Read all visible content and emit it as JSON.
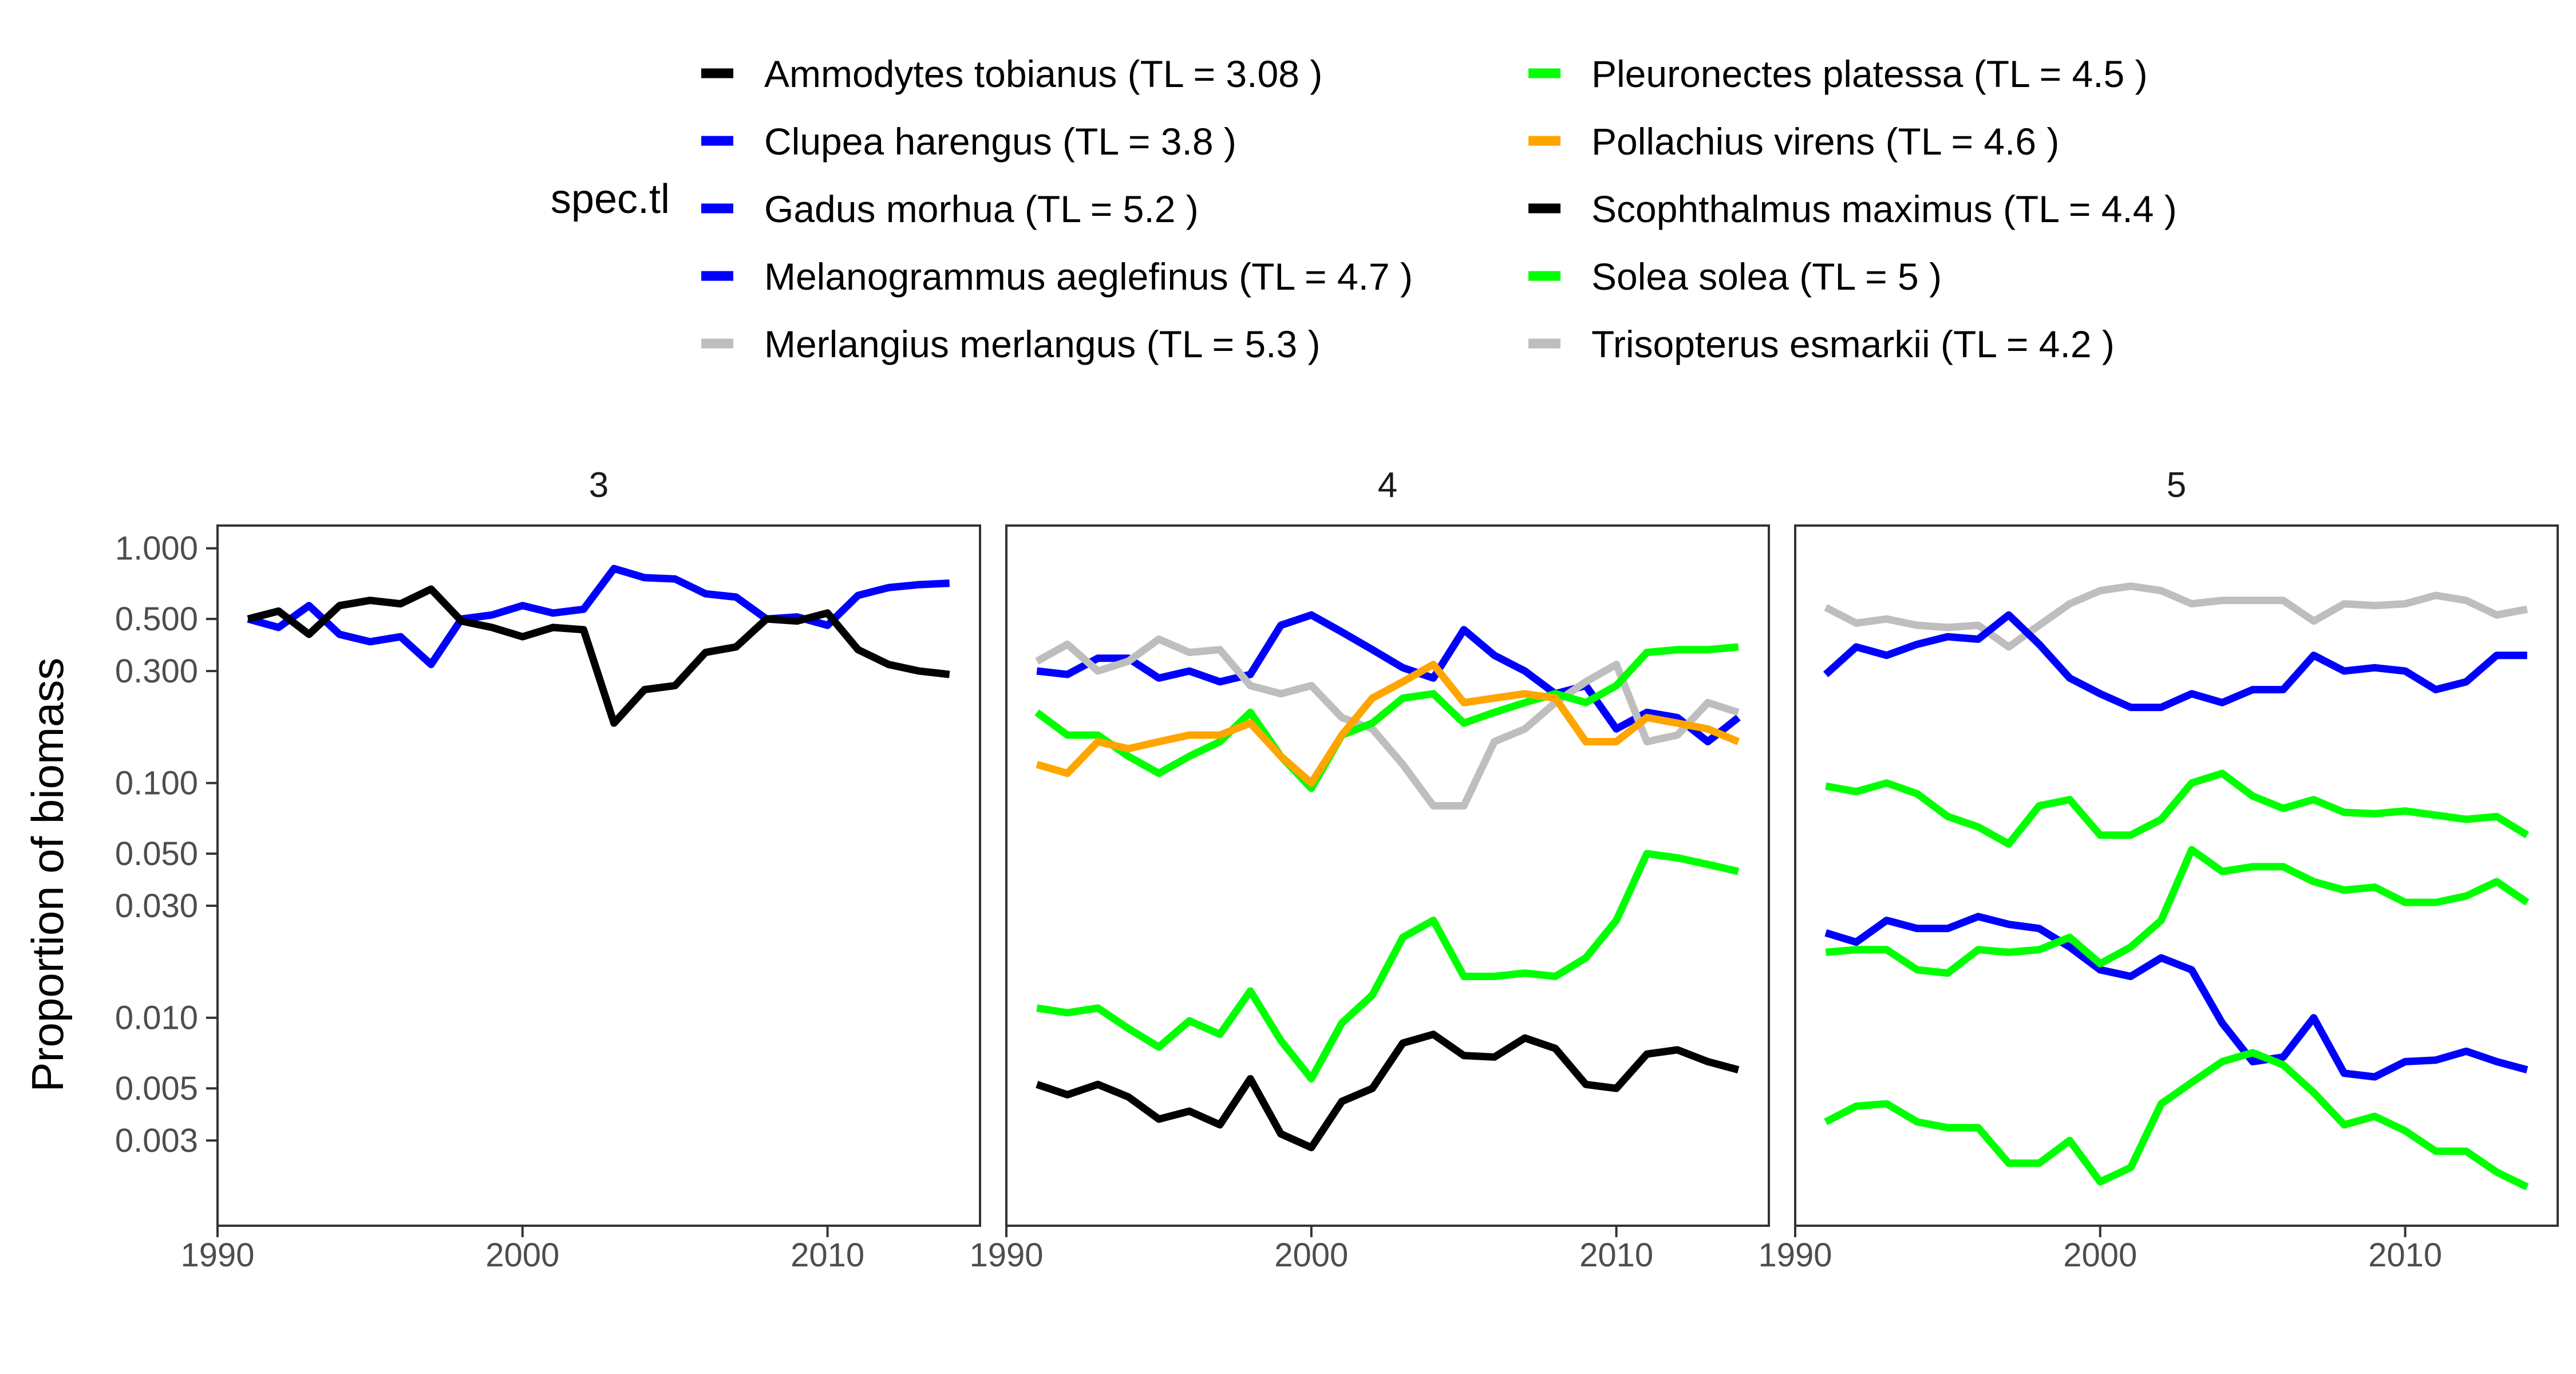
{
  "chart_data": {
    "type": "line",
    "y_scale": "log10",
    "ylabel": "Proportion of biomass",
    "xlabel": "",
    "xlim": [
      1990,
      2015
    ],
    "ylim": [
      0.0013,
      1.25
    ],
    "x_ticks": [
      1990,
      2000,
      2010
    ],
    "x_tick_labels": [
      "1990",
      "2000",
      "2010"
    ],
    "y_ticks": [
      1.0,
      0.5,
      0.3,
      0.1,
      0.05,
      0.03,
      0.01,
      0.005,
      0.003
    ],
    "y_tick_labels": [
      "1.000",
      "0.500",
      "0.300",
      "0.100",
      "0.050",
      "0.030",
      "0.010",
      "0.005",
      "0.003"
    ],
    "legend": {
      "title": "spec.tl",
      "placement": "top",
      "entries": [
        {
          "label": "Ammodytes tobianus (TL =  3.08 )",
          "color": "#000000"
        },
        {
          "label": "Clupea harengus (TL =  3.8 )",
          "color": "#0000ff"
        },
        {
          "label": "Gadus morhua (TL =  5.2 )",
          "color": "#0000ff"
        },
        {
          "label": "Melanogrammus aeglefinus (TL =  4.7 )",
          "color": "#0000ff"
        },
        {
          "label": "Merlangius merlangus (TL =  5.3 )",
          "color": "#bebebe"
        },
        {
          "label": "Pleuronectes platessa (TL =  4.5 )",
          "color": "#00ff00"
        },
        {
          "label": "Pollachius virens (TL =  4.6 )",
          "color": "#ffa500"
        },
        {
          "label": "Scophthalmus maximus (TL =  4.4 )",
          "color": "#000000"
        },
        {
          "label": "Solea solea (TL =  5 )",
          "color": "#00ff00"
        },
        {
          "label": "Trisopterus esmarkii (TL =  4.2 )",
          "color": "#bebebe"
        }
      ]
    },
    "panels": [
      {
        "title": "3",
        "series": [
          {
            "name": "Clupea harengus (TL =  3.8 )",
            "color": "#0000ff",
            "x_start": 1991,
            "values": [
              0.5,
              0.46,
              0.57,
              0.43,
              0.4,
              0.42,
              0.32,
              0.5,
              0.52,
              0.57,
              0.53,
              0.55,
              0.82,
              0.75,
              0.74,
              0.64,
              0.62,
              0.5,
              0.51,
              0.47,
              0.63,
              0.68,
              0.7,
              0.71
            ]
          },
          {
            "name": "Ammodytes tobianus (TL =  3.08 )",
            "color": "#000000",
            "x_start": 1991,
            "values": [
              0.5,
              0.54,
              0.43,
              0.57,
              0.6,
              0.58,
              0.67,
              0.49,
              0.46,
              0.42,
              0.46,
              0.45,
              0.18,
              0.25,
              0.26,
              0.36,
              0.38,
              0.5,
              0.49,
              0.53,
              0.37,
              0.32,
              0.3,
              0.29
            ]
          }
        ]
      },
      {
        "title": "4",
        "series": [
          {
            "name": "Melanogrammus aeglefinus (TL =  4.7 )",
            "color": "#0000ff",
            "x_start": 1991,
            "values": [
              0.3,
              0.29,
              0.34,
              0.34,
              0.28,
              0.3,
              0.27,
              0.29,
              0.47,
              0.52,
              0.44,
              0.37,
              0.31,
              0.28,
              0.45,
              0.35,
              0.3,
              0.24,
              0.26,
              0.17,
              0.2,
              0.19,
              0.15,
              0.19
            ]
          },
          {
            "name": "Trisopterus esmarkii (TL =  4.2 )",
            "color": "#bebebe",
            "x_start": 1991,
            "values": [
              0.33,
              0.39,
              0.3,
              0.33,
              0.41,
              0.36,
              0.37,
              0.26,
              0.24,
              0.26,
              0.19,
              0.17,
              0.12,
              0.08,
              0.08,
              0.15,
              0.17,
              0.22,
              0.27,
              0.32,
              0.15,
              0.16,
              0.22,
              0.2
            ]
          },
          {
            "name": "Pleuronectes platessa (TL =  4.5 )",
            "color": "#00ff00",
            "x_start": 1991,
            "values": [
              0.2,
              0.16,
              0.16,
              0.13,
              0.11,
              0.13,
              0.15,
              0.2,
              0.13,
              0.095,
              0.16,
              0.18,
              0.23,
              0.24,
              0.18,
              0.2,
              0.22,
              0.24,
              0.22,
              0.26,
              0.36,
              0.37,
              0.37,
              0.38
            ]
          },
          {
            "name": "Pollachius virens (TL =  4.6 )",
            "color": "#ffa500",
            "x_start": 1991,
            "values": [
              0.12,
              0.11,
              0.15,
              0.14,
              0.15,
              0.16,
              0.16,
              0.18,
              0.13,
              0.1,
              0.16,
              0.23,
              0.27,
              0.32,
              0.22,
              0.23,
              0.24,
              0.23,
              0.15,
              0.15,
              0.19,
              0.18,
              0.17,
              0.15
            ]
          },
          {
            "name": "Solea solea (TL =  5 )",
            "color": "#00ff00",
            "x_start": 1991,
            "values": [
              0.011,
              0.0105,
              0.011,
              0.009,
              0.0075,
              0.0097,
              0.0085,
              0.013,
              0.008,
              0.0055,
              0.0095,
              0.0125,
              0.022,
              0.026,
              0.015,
              0.015,
              0.0155,
              0.015,
              0.018,
              0.026,
              0.05,
              0.048,
              0.045,
              0.042
            ]
          },
          {
            "name": "Scophthalmus maximus (TL =  4.4 )",
            "color": "#000000",
            "x_start": 1991,
            "values": [
              0.0052,
              0.0047,
              0.0052,
              0.0046,
              0.0037,
              0.004,
              0.0035,
              0.0055,
              0.0032,
              0.0028,
              0.0044,
              0.005,
              0.0078,
              0.0085,
              0.0069,
              0.0068,
              0.0082,
              0.0074,
              0.0052,
              0.005,
              0.007,
              0.0073,
              0.0065,
              0.006
            ]
          }
        ]
      },
      {
        "title": "5",
        "series": [
          {
            "name": "Merlangius merlangus (TL =  5.3 )",
            "color": "#bebebe",
            "x_start": 1991,
            "values": [
              0.56,
              0.48,
              0.5,
              0.47,
              0.46,
              0.47,
              0.38,
              0.47,
              0.58,
              0.66,
              0.69,
              0.66,
              0.58,
              0.6,
              0.6,
              0.6,
              0.49,
              0.58,
              0.57,
              0.58,
              0.63,
              0.6,
              0.52,
              0.55
            ]
          },
          {
            "name": "Gadus morhua (TL =  5.2 )",
            "color": "#0000ff",
            "x_start": 1991,
            "values": [
              0.29,
              0.38,
              0.35,
              0.39,
              0.42,
              0.41,
              0.52,
              0.39,
              0.28,
              0.24,
              0.21,
              0.21,
              0.24,
              0.22,
              0.25,
              0.25,
              0.35,
              0.3,
              0.31,
              0.3,
              0.25,
              0.27,
              0.35,
              0.35
            ]
          },
          {
            "name": "Pleuronectes platessa (TL =  4.5 )",
            "color": "#00ff00",
            "x_start": 1991,
            "values": [
              0.097,
              0.092,
              0.1,
              0.09,
              0.072,
              0.065,
              0.055,
              0.08,
              0.085,
              0.06,
              0.06,
              0.07,
              0.1,
              0.11,
              0.088,
              0.078,
              0.085,
              0.075,
              0.074,
              0.076,
              0.073,
              0.07,
              0.072,
              0.06
            ]
          },
          {
            "name": "Clupea harengus (TL =  3.8 )",
            "color": "#0000ff",
            "x_start": 1991,
            "values": [
              0.023,
              0.021,
              0.026,
              0.024,
              0.024,
              0.027,
              0.025,
              0.024,
              0.02,
              0.016,
              0.015,
              0.018,
              0.016,
              0.0095,
              0.0065,
              0.0068,
              0.01,
              0.0058,
              0.0056,
              0.0065,
              0.0066,
              0.0072,
              0.0065,
              0.006
            ]
          },
          {
            "name": "Solea solea (TL =  5 )",
            "color": "#00ff00",
            "x_start": 1991,
            "values": [
              0.019,
              0.0195,
              0.0195,
              0.016,
              0.0155,
              0.0195,
              0.019,
              0.0195,
              0.022,
              0.017,
              0.02,
              0.026,
              0.052,
              0.042,
              0.044,
              0.044,
              0.038,
              0.035,
              0.036,
              0.031,
              0.031,
              0.033,
              0.038,
              0.031
            ]
          },
          {
            "name": "Solea solea (TL =  5 )",
            "color": "#00ff00",
            "x_start": 1991,
            "values": [
              0.0036,
              0.0042,
              0.0043,
              0.0036,
              0.0034,
              0.0034,
              0.0024,
              0.0024,
              0.003,
              0.002,
              0.0023,
              0.0043,
              0.0053,
              0.0065,
              0.0071,
              0.0063,
              0.0048,
              0.0035,
              0.0038,
              0.0033,
              0.0027,
              0.0027,
              0.0022,
              0.0019
            ]
          }
        ]
      }
    ]
  }
}
